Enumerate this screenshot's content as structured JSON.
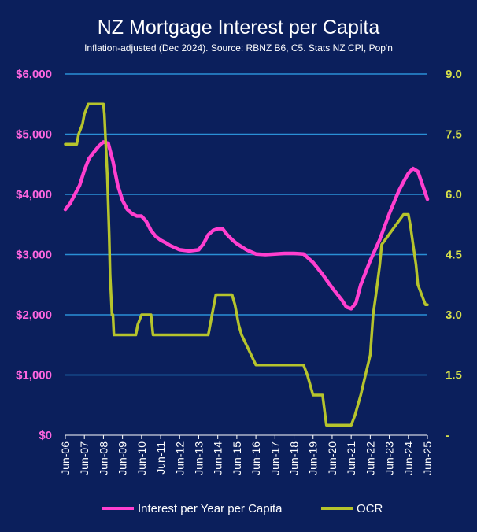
{
  "chart_data": {
    "type": "line",
    "title": "NZ  Mortgage Interest per Capita",
    "subtitle": "Inflation-adjusted (Dec 2024). Source: RBNZ B6, C5.  Stats NZ CPI, Pop'n",
    "categories": [
      "Jun-06",
      "Jun-07",
      "Jun-08",
      "Jun-09",
      "Jun-10",
      "Jun-11",
      "Jun-12",
      "Jun-13",
      "Jun-14",
      "Jun-15",
      "Jun-16",
      "Jun-17",
      "Jun-18",
      "Jun-19",
      "Jun-20",
      "Jun-21",
      "Jun-22",
      "Jun-23",
      "Jun-24",
      "Jun-25"
    ],
    "x_range": [
      2006.5,
      2025.5
    ],
    "left_axis": {
      "ylim": [
        0,
        6000
      ],
      "ticks": [
        0,
        1000,
        2000,
        3000,
        4000,
        5000,
        6000
      ],
      "tick_labels": [
        "$0",
        "$1,000",
        "$2,000",
        "$3,000",
        "$4,000",
        "$5,000",
        "$6,000"
      ],
      "color": "#ff66e0"
    },
    "right_axis": {
      "ylim": [
        0,
        9
      ],
      "ticks": [
        0,
        1.5,
        3.0,
        4.5,
        6.0,
        7.5,
        9.0
      ],
      "tick_labels": [
        "-",
        "1.5",
        "3.0",
        "4.5",
        "6.0",
        "7.5",
        "9.0"
      ],
      "color": "#c5d330"
    },
    "grid": true,
    "legend_position": "bottom",
    "series": [
      {
        "name": "Interest per Year per Capita",
        "axis": "left",
        "color": "#ff3fcf",
        "x": [
          2006.5,
          2006.75,
          2007.0,
          2007.25,
          2007.5,
          2007.75,
          2008.0,
          2008.25,
          2008.5,
          2008.75,
          2009.0,
          2009.25,
          2009.5,
          2009.75,
          2010.0,
          2010.25,
          2010.5,
          2010.75,
          2011.0,
          2011.25,
          2011.5,
          2011.75,
          2012.0,
          2012.5,
          2013.0,
          2013.5,
          2013.75,
          2014.0,
          2014.25,
          2014.5,
          2014.75,
          2015.0,
          2015.25,
          2015.5,
          2016.0,
          2016.5,
          2017.0,
          2017.5,
          2018.0,
          2018.5,
          2019.0,
          2019.5,
          2020.0,
          2020.5,
          2021.0,
          2021.25,
          2021.5,
          2021.75,
          2022.0,
          2022.5,
          2023.0,
          2023.5,
          2024.0,
          2024.25,
          2024.5,
          2024.75,
          2025.0,
          2025.5
        ],
        "values": [
          3750,
          3850,
          4000,
          4150,
          4400,
          4600,
          4700,
          4800,
          4870,
          4850,
          4550,
          4150,
          3900,
          3750,
          3680,
          3640,
          3640,
          3550,
          3400,
          3300,
          3240,
          3200,
          3150,
          3080,
          3060,
          3080,
          3180,
          3330,
          3400,
          3430,
          3430,
          3330,
          3250,
          3180,
          3080,
          3010,
          3000,
          3010,
          3020,
          3020,
          3010,
          2870,
          2670,
          2450,
          2250,
          2130,
          2100,
          2200,
          2500,
          2900,
          3250,
          3680,
          4060,
          4210,
          4350,
          4430,
          4380,
          3920
        ]
      },
      {
        "name": "OCR",
        "axis": "right",
        "color": "#b6c42c",
        "x": [
          2006.5,
          2006.9,
          2007.1,
          2007.2,
          2007.4,
          2007.5,
          2007.7,
          2008.4,
          2008.5,
          2008.55,
          2008.6,
          2008.7,
          2008.8,
          2008.85,
          2008.9,
          2008.95,
          2009.0,
          2009.05,
          2009.15,
          2009.3,
          2010.2,
          2010.3,
          2010.5,
          2011.0,
          2011.1,
          2011.3,
          2014.0,
          2014.1,
          2014.2,
          2014.3,
          2014.4,
          2014.5,
          2015.25,
          2015.4,
          2015.5,
          2015.6,
          2015.75,
          2016.0,
          2016.25,
          2016.5,
          2016.75,
          2019.0,
          2019.2,
          2019.5,
          2020.0,
          2020.2,
          2021.5,
          2021.7,
          2021.85,
          2022.0,
          2022.25,
          2022.5,
          2022.65,
          2022.8,
          2023.0,
          2023.1,
          2024.25,
          2024.5,
          2024.6,
          2024.75,
          2024.9,
          2025.0,
          2025.2,
          2025.4,
          2025.5
        ],
        "values": [
          7.25,
          7.25,
          7.25,
          7.5,
          7.75,
          8.0,
          8.25,
          8.25,
          8.25,
          8.0,
          7.5,
          6.5,
          5.0,
          4.0,
          3.5,
          3.0,
          3.0,
          2.5,
          2.5,
          2.5,
          2.5,
          2.75,
          3.0,
          3.0,
          2.5,
          2.5,
          2.5,
          2.75,
          3.0,
          3.25,
          3.5,
          3.5,
          3.5,
          3.25,
          3.0,
          2.75,
          2.5,
          2.25,
          2.0,
          1.75,
          1.75,
          1.75,
          1.5,
          1.0,
          1.0,
          0.25,
          0.25,
          0.5,
          0.75,
          1.0,
          1.5,
          2.0,
          3.0,
          3.5,
          4.25,
          4.75,
          5.5,
          5.5,
          5.25,
          4.75,
          4.25,
          3.75,
          3.5,
          3.25,
          3.25
        ]
      }
    ]
  }
}
